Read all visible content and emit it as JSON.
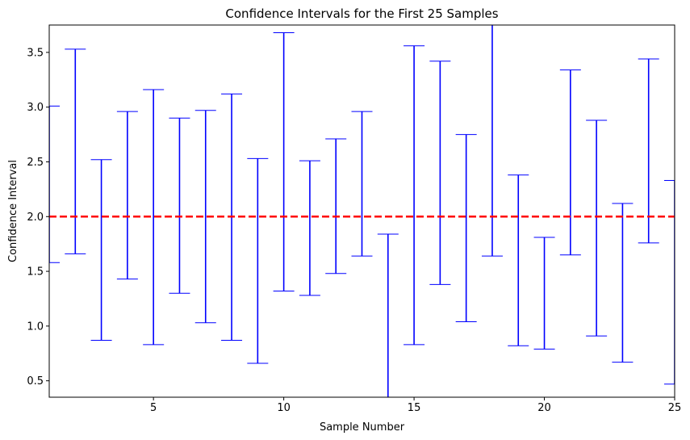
{
  "chart_data": {
    "type": "errorbar",
    "title": "Confidence Intervals for the First 25 Samples",
    "xlabel": "Sample Number",
    "ylabel": "Confidence Interval",
    "xlim": [
      1,
      25
    ],
    "ylim": [
      0.35,
      3.75
    ],
    "xticks": [
      5,
      10,
      15,
      20,
      25
    ],
    "yticks": [
      0.5,
      1.0,
      1.5,
      2.0,
      2.5,
      3.0,
      3.5
    ],
    "ytick_labels": [
      "0.5",
      "1.0",
      "1.5",
      "2.0",
      "2.5",
      "3.0",
      "3.5"
    ],
    "grid": false,
    "reference_line": {
      "y": 2.0,
      "color": "#ff0000",
      "style": "dashed"
    },
    "interval_color": "#0000ff",
    "intervals": [
      {
        "sample": 1,
        "lower": 1.58,
        "upper": 3.01
      },
      {
        "sample": 2,
        "lower": 1.66,
        "upper": 3.53
      },
      {
        "sample": 3,
        "lower": 0.87,
        "upper": 2.52
      },
      {
        "sample": 4,
        "lower": 1.43,
        "upper": 2.96
      },
      {
        "sample": 5,
        "lower": 0.83,
        "upper": 3.16
      },
      {
        "sample": 6,
        "lower": 1.3,
        "upper": 2.9
      },
      {
        "sample": 7,
        "lower": 1.03,
        "upper": 2.97
      },
      {
        "sample": 8,
        "lower": 0.87,
        "upper": 3.12
      },
      {
        "sample": 9,
        "lower": 0.66,
        "upper": 2.53
      },
      {
        "sample": 10,
        "lower": 1.32,
        "upper": 3.68
      },
      {
        "sample": 11,
        "lower": 1.28,
        "upper": 2.51
      },
      {
        "sample": 12,
        "lower": 1.48,
        "upper": 2.71
      },
      {
        "sample": 13,
        "lower": 1.64,
        "upper": 2.96
      },
      {
        "sample": 14,
        "lower": 0.35,
        "upper": 1.84
      },
      {
        "sample": 15,
        "lower": 0.83,
        "upper": 3.56
      },
      {
        "sample": 16,
        "lower": 1.38,
        "upper": 3.42
      },
      {
        "sample": 17,
        "lower": 1.04,
        "upper": 2.75
      },
      {
        "sample": 18,
        "lower": 1.64,
        "upper": 3.75
      },
      {
        "sample": 19,
        "lower": 0.82,
        "upper": 2.38
      },
      {
        "sample": 20,
        "lower": 0.79,
        "upper": 1.81
      },
      {
        "sample": 21,
        "lower": 1.65,
        "upper": 3.34
      },
      {
        "sample": 22,
        "lower": 0.91,
        "upper": 2.88
      },
      {
        "sample": 23,
        "lower": 0.67,
        "upper": 2.12
      },
      {
        "sample": 24,
        "lower": 1.76,
        "upper": 3.44
      },
      {
        "sample": 25,
        "lower": 0.47,
        "upper": 2.33
      }
    ]
  }
}
